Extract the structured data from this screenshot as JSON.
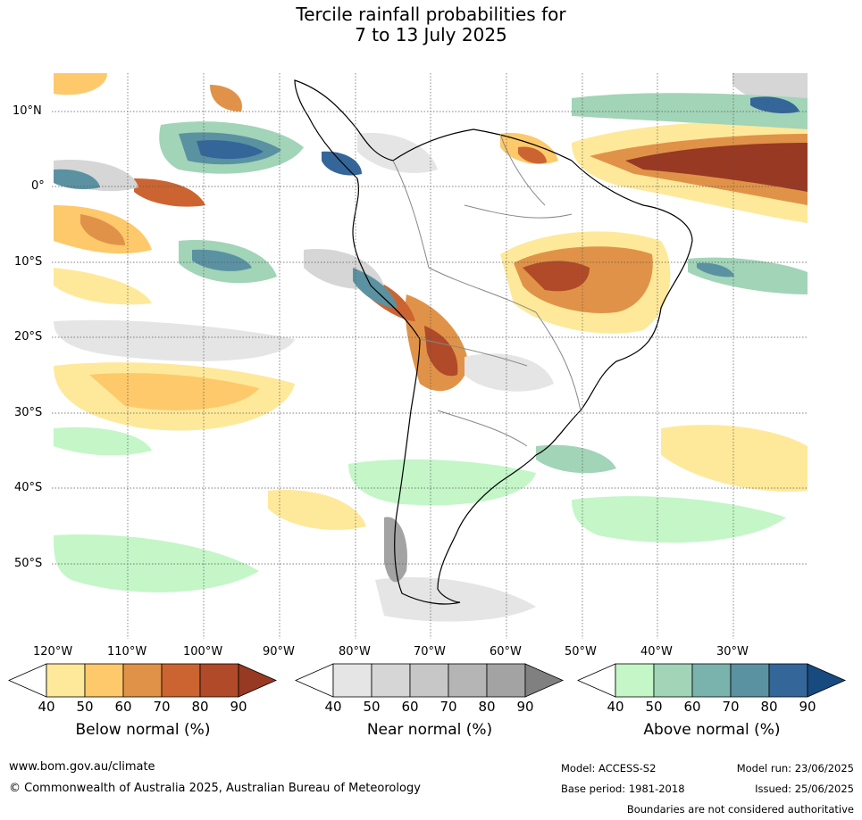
{
  "title": {
    "line1": "Tercile rainfall probabilities for",
    "line2": "7 to 13 July 2025"
  },
  "map": {
    "lat_labels": [
      "10°N",
      "0°",
      "10°S",
      "20°S",
      "30°S",
      "40°S",
      "50°S"
    ],
    "lon_labels": [
      "120°W",
      "110°W",
      "100°W",
      "90°W",
      "80°W",
      "70°W",
      "60°W",
      "50°W",
      "40°W",
      "30°W"
    ]
  },
  "colorbars": [
    {
      "title": "Below normal (%)",
      "ticks": [
        "40",
        "50",
        "60",
        "70",
        "80",
        "90"
      ],
      "colors": [
        "#ffffff",
        "#fee99b",
        "#fdc96b",
        "#e09348",
        "#cc6431",
        "#b04a28",
        "#983923"
      ]
    },
    {
      "title": "Near normal (%)",
      "ticks": [
        "40",
        "50",
        "60",
        "70",
        "80",
        "90"
      ],
      "colors": [
        "#ffffff",
        "#e5e5e5",
        "#d6d6d6",
        "#c7c7c7",
        "#b5b5b5",
        "#a3a3a3",
        "#808080"
      ]
    },
    {
      "title": "Above normal (%)",
      "ticks": [
        "40",
        "50",
        "60",
        "70",
        "80",
        "90"
      ],
      "colors": [
        "#ffffff",
        "#c4f6c8",
        "#a2d4b8",
        "#7ab3ad",
        "#5b92a2",
        "#356699",
        "#174b80"
      ]
    }
  ],
  "footer": {
    "website": "www.bom.gov.au/climate",
    "copyright": "© Commonwealth of Australia 2025, Australian Bureau of Meteorology",
    "model": "Model: ACCESS-S2",
    "model_run": "Model run: 23/06/2025",
    "base_period": "Base period: 1981-2018",
    "issued": "Issued: 25/06/2025",
    "disclaimer": "Boundaries are not considered authoritative"
  }
}
